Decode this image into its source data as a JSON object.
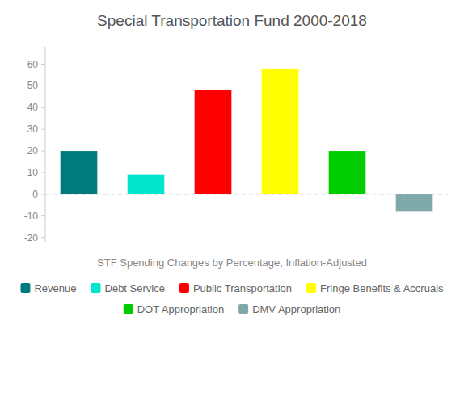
{
  "chart_data": {
    "type": "bar",
    "title": "Special Transportation Fund 2000-2018",
    "subtitle": "STF Spending Changes by Percentage, Inflation-Adjusted",
    "categories": [
      "Revenue",
      "Debt Service",
      "Public Transportation",
      "Fringe Benefits & Accruals",
      "DOT Appropriation",
      "DMV Appropriation"
    ],
    "values": [
      20,
      9,
      48,
      58,
      20,
      -8
    ],
    "colors": [
      "#007A7A",
      "#00E5CC",
      "#FF0000",
      "#FFFF00",
      "#00CC00",
      "#7FA8A8"
    ],
    "ylim": [
      -22,
      68
    ],
    "yticks": [
      -20,
      -10,
      0,
      10,
      20,
      30,
      40,
      50,
      60
    ],
    "grid": false,
    "legend": "bottom",
    "tick_labels": "y"
  }
}
